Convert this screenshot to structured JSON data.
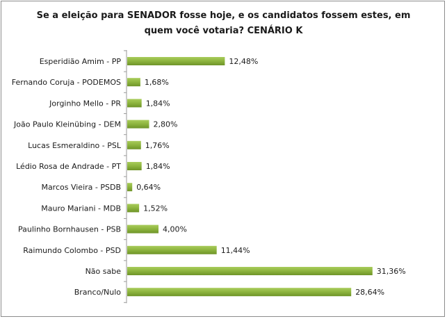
{
  "chart_data": {
    "type": "bar",
    "orientation": "horizontal",
    "title_line1": "Se a eleição para SENADOR fosse hoje, e os candidatos fossem estes, em",
    "title_line2": "quem você votaria? CENÁRIO K",
    "categories": [
      "Esperidião Amim - PP",
      "Fernando Coruja - PODEMOS",
      "Jorginho Mello - PR",
      "João Paulo Kleinübing - DEM",
      "Lucas Esmeraldino - PSL",
      "Lédio Rosa de Andrade - PT",
      "Marcos Vieira - PSDB",
      "Mauro Mariani - MDB",
      "Paulinho Bornhausen - PSB",
      "Raimundo Colombo - PSD",
      "Não sabe",
      "Branco/Nulo"
    ],
    "values": [
      12.48,
      1.68,
      1.84,
      2.8,
      1.76,
      1.84,
      0.64,
      1.52,
      4.0,
      11.44,
      31.36,
      28.64
    ],
    "value_labels": [
      "12,48%",
      "1,68%",
      "1,84%",
      "2,80%",
      "1,76%",
      "1,84%",
      "0,64%",
      "1,52%",
      "4,00%",
      "11,44%",
      "31,36%",
      "28,64%"
    ],
    "xlim": [
      0,
      32
    ],
    "grid": false,
    "legend": "none",
    "bar_color": "#8db43e"
  }
}
